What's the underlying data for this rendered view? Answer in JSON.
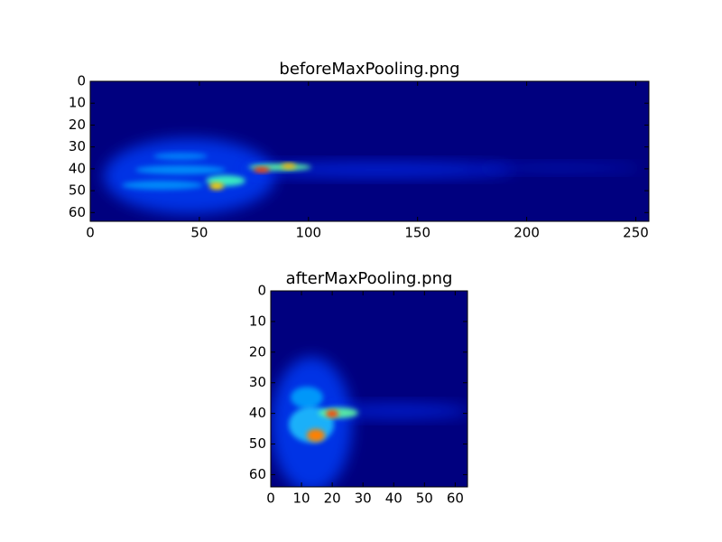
{
  "chart_data": [
    {
      "type": "heatmap",
      "title": "beforeMaxPooling.png",
      "colormap": "jet",
      "xlim": [
        0,
        256
      ],
      "ylim": [
        0,
        64
      ],
      "y_inverted": true,
      "xticks": [
        0,
        50,
        100,
        150,
        200,
        250
      ],
      "yticks": [
        0,
        10,
        20,
        30,
        40,
        50,
        60
      ]
    },
    {
      "type": "heatmap",
      "title": "afterMaxPooling.png",
      "colormap": "jet",
      "xlim": [
        0,
        64
      ],
      "ylim": [
        0,
        64
      ],
      "y_inverted": true,
      "xticks": [
        0,
        10,
        20,
        30,
        40,
        50,
        60
      ],
      "yticks": [
        0,
        10,
        20,
        30,
        40,
        50,
        60
      ]
    }
  ]
}
